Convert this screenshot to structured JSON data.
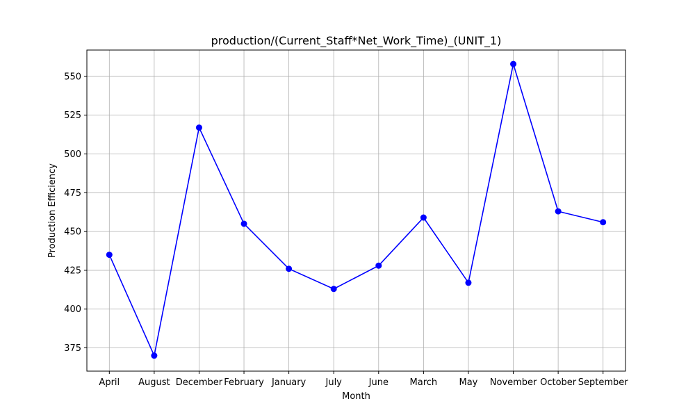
{
  "chart_data": {
    "type": "line",
    "title": "production/(Current_Staff*Net_Work_Time)_(UNIT_1)",
    "xlabel": "Month",
    "ylabel": "Production Efficiency",
    "categories": [
      "April",
      "August",
      "December",
      "February",
      "January",
      "July",
      "June",
      "March",
      "May",
      "November",
      "October",
      "September"
    ],
    "series": [
      {
        "values": [
          435,
          370,
          517,
          455,
          426,
          413,
          428,
          459,
          417,
          558,
          463,
          456
        ],
        "color": "#0000ff",
        "marker": "circle"
      }
    ],
    "ylim": [
      360,
      567
    ],
    "yticks": [
      375,
      400,
      425,
      450,
      475,
      500,
      525,
      550
    ],
    "grid": true,
    "legend": "none"
  }
}
